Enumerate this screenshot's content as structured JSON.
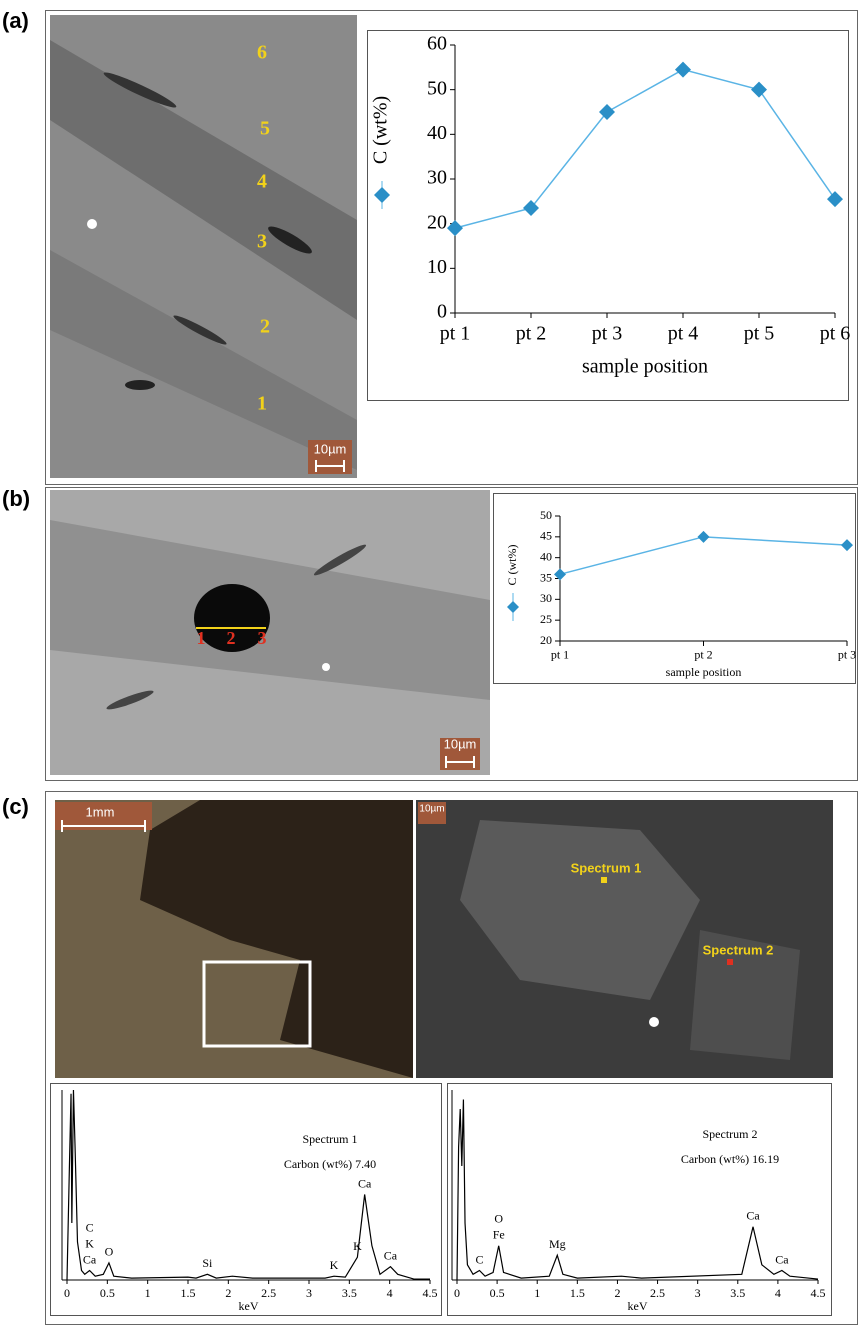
{
  "panels": [
    {
      "label": "(a)",
      "image_texts": [
        "6",
        "5",
        "4",
        "3",
        "2",
        "1",
        "10µm"
      ]
    },
    {
      "label": "(b)",
      "image_texts": [
        "1",
        "2",
        "3",
        "10µm"
      ]
    },
    {
      "label": "(c)",
      "image_texts": [
        "1mm",
        "10µm",
        "Spectrum 1",
        "Spectrum 2"
      ]
    }
  ],
  "chart_data": [
    {
      "type": "line",
      "xlabel": "sample position",
      "categories": [
        "pt 1",
        "pt 2",
        "pt 3",
        "pt 4",
        "pt 5",
        "pt 6"
      ],
      "series": [
        {
          "name": "C (wt%)",
          "color": "#2a8fc7",
          "values": [
            19,
            23.5,
            45,
            54.5,
            50,
            25.5
          ]
        }
      ],
      "ylim": [
        0,
        60
      ],
      "yticks": [
        0,
        10,
        20,
        30,
        40,
        50,
        60
      ]
    },
    {
      "type": "line",
      "xlabel": "sample position",
      "categories": [
        "pt 1",
        "pt 2",
        "pt 3"
      ],
      "series": [
        {
          "name": "C (wt%)",
          "color": "#2a8fc7",
          "values": [
            36,
            45,
            43
          ]
        }
      ],
      "ylim": [
        20,
        50
      ],
      "yticks": [
        20,
        25,
        30,
        35,
        40,
        45,
        50
      ]
    },
    {
      "type": "spectrum",
      "title": "Spectrum 1",
      "subtitle": "Carbon (wt%) 7.40",
      "xlabel": "keV",
      "x": [
        0,
        0.03,
        0.05,
        0.06,
        0.08,
        0.1,
        0.13,
        0.18,
        0.22,
        0.28,
        0.35,
        0.45,
        0.52,
        0.58,
        0.8,
        1.5,
        1.6,
        1.74,
        1.85,
        2.05,
        2.3,
        3.2,
        3.31,
        3.45,
        3.6,
        3.69,
        3.78,
        3.88,
        4.01,
        4.1,
        4.3,
        4.5
      ],
      "series": [
        {
          "color": "#000000",
          "values": [
            0,
            60,
            98,
            30,
            100,
            70,
            20,
            5,
            3,
            5,
            2,
            3,
            9,
            2,
            1,
            1.5,
            1,
            3,
            1,
            2,
            1,
            1,
            2,
            1.5,
            12,
            45,
            18,
            3,
            7,
            3,
            0.5,
            0.5
          ]
        }
      ],
      "annotations": [
        {
          "text": "Ca",
          "x": 0.28
        },
        {
          "text": "K",
          "x": 0.28
        },
        {
          "text": "C",
          "x": 0.28
        },
        {
          "text": "O",
          "x": 0.52
        },
        {
          "text": "Si",
          "x": 1.74
        },
        {
          "text": "K",
          "x": 3.31
        },
        {
          "text": "K",
          "x": 3.6
        },
        {
          "text": "Ca",
          "x": 3.69
        },
        {
          "text": "Ca",
          "x": 4.01
        }
      ],
      "xlim": [
        0,
        4.5
      ],
      "xticks": [
        0,
        0.5,
        1,
        1.5,
        2,
        2.5,
        3,
        3.5,
        4,
        4.5
      ],
      "ylim": [
        0,
        100
      ]
    },
    {
      "type": "spectrum",
      "title": "Spectrum 2",
      "subtitle": "Carbon (wt%) 16.19",
      "xlabel": "keV",
      "x": [
        0,
        0.02,
        0.04,
        0.06,
        0.08,
        0.1,
        0.13,
        0.2,
        0.28,
        0.35,
        0.45,
        0.52,
        0.58,
        0.8,
        1.15,
        1.25,
        1.32,
        1.5,
        2.05,
        2.3,
        3.55,
        3.69,
        3.8,
        3.95,
        4.05,
        4.15,
        4.5
      ],
      "series": [
        {
          "color": "#000000",
          "values": [
            0,
            70,
            90,
            60,
            95,
            30,
            8,
            3,
            5,
            2,
            4,
            18,
            4,
            1,
            2,
            13,
            3,
            1,
            2,
            1,
            3,
            28,
            8,
            3,
            5,
            2,
            0.5
          ]
        }
      ],
      "annotations": [
        {
          "text": "C",
          "x": 0.28
        },
        {
          "text": "Fe",
          "x": 0.52
        },
        {
          "text": "O",
          "x": 0.52
        },
        {
          "text": "Mg",
          "x": 1.25
        },
        {
          "text": "Ca",
          "x": 3.69
        },
        {
          "text": "Ca",
          "x": 4.05
        }
      ],
      "xlim": [
        0,
        4.5
      ],
      "xticks": [
        0,
        0.5,
        1,
        1.5,
        2,
        2.5,
        3,
        3.5,
        4,
        4.5
      ],
      "ylim": [
        0,
        100
      ]
    }
  ]
}
